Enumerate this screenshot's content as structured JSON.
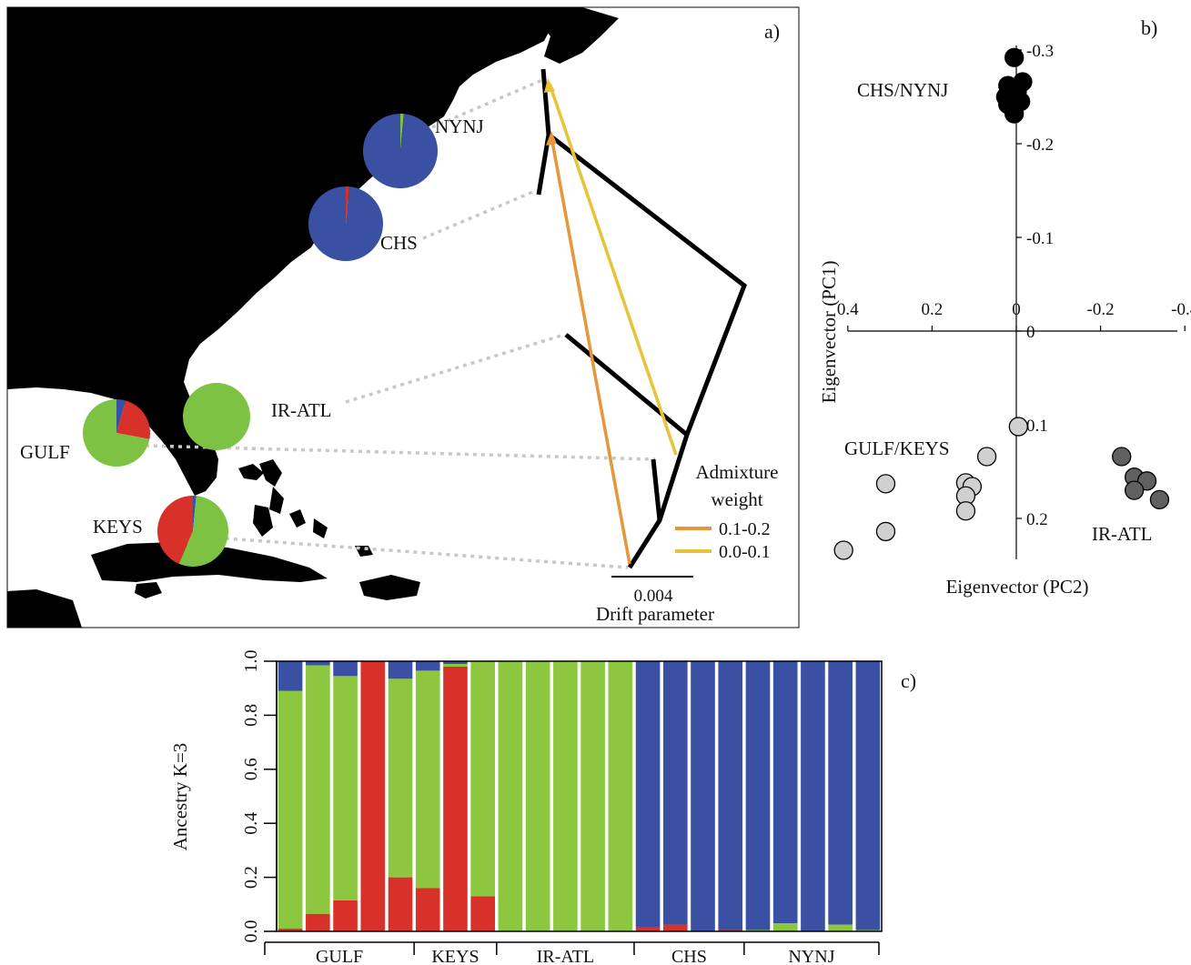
{
  "panel_labels": {
    "a": "a)",
    "b": "b)",
    "c": "c)"
  },
  "map": {
    "populations": [
      {
        "name": "NYNJ",
        "pie": {
          "blue": 0.985,
          "green": 0.015,
          "red": 0.0
        }
      },
      {
        "name": "CHS",
        "pie": {
          "blue": 0.985,
          "green": 0.0,
          "red": 0.015
        }
      },
      {
        "name": "IR-ATL",
        "pie": {
          "blue": 0.0,
          "green": 1.0,
          "red": 0.0
        }
      },
      {
        "name": "GULF",
        "pie": {
          "blue": 0.045,
          "green": 0.72,
          "red": 0.235
        }
      },
      {
        "name": "KEYS",
        "pie": {
          "blue": 0.015,
          "green": 0.55,
          "red": 0.435
        }
      }
    ],
    "legend": {
      "title_line1": "Admixture",
      "title_line2": "weight",
      "items": [
        {
          "label": "0.1-0.2",
          "color": "#E8963A"
        },
        {
          "label": "0.0-0.1",
          "color": "#E8C33A"
        }
      ]
    },
    "scale_value": "0.004",
    "scale_label": "Drift parameter"
  },
  "colors": {
    "blue": "#3A50A3",
    "green": "#8DC73F",
    "red": "#D7312A",
    "pie_green": "#7DC242",
    "land": "#000000"
  },
  "chart_data": [
    {
      "type": "scatter",
      "title": "",
      "xlabel": "Eigenvector (PC2)",
      "ylabel": "Eigenvector (PC1)",
      "xlim": [
        0.4,
        -0.4
      ],
      "ylim": [
        -0.3,
        0.2
      ],
      "x_ticks": [
        "0.4",
        "0.2",
        "0",
        "-0.2",
        "-0.4"
      ],
      "y_ticks": [
        "-0.3",
        "-0.2",
        "-0.1",
        "0",
        "0.1",
        "0.2"
      ],
      "series": [
        {
          "name": "CHS/NYNJ",
          "color": "#000000",
          "points": [
            [
              0.005,
              -0.292
            ],
            [
              -0.015,
              -0.266
            ],
            [
              0.02,
              -0.262
            ],
            [
              -0.002,
              -0.256
            ],
            [
              0.025,
              -0.25
            ],
            [
              0.0,
              -0.245
            ],
            [
              -0.01,
              -0.245
            ],
            [
              0.02,
              -0.242
            ],
            [
              0.005,
              -0.232
            ]
          ]
        },
        {
          "name": "GULF/KEYS",
          "color": "#D0D0D0",
          "points": [
            [
              -0.005,
              0.102
            ],
            [
              0.07,
              0.134
            ],
            [
              0.31,
              0.163
            ],
            [
              0.12,
              0.162
            ],
            [
              0.105,
              0.166
            ],
            [
              0.12,
              0.176
            ],
            [
              0.12,
              0.192
            ],
            [
              0.31,
              0.214
            ],
            [
              0.41,
              0.234
            ]
          ]
        },
        {
          "name": "IR-ATL",
          "color": "#606060",
          "points": [
            [
              -0.25,
              0.134
            ],
            [
              -0.28,
              0.156
            ],
            [
              -0.31,
              0.16
            ],
            [
              -0.28,
              0.17
            ],
            [
              -0.34,
              0.18
            ]
          ]
        }
      ]
    },
    {
      "type": "bar",
      "title": "",
      "ylabel": "Ancestry K=3",
      "ylim": [
        0,
        1
      ],
      "y_ticks": [
        "0.0",
        "0.2",
        "0.4",
        "0.6",
        "0.8",
        "1.0"
      ],
      "stacked": true,
      "groups": [
        {
          "label": "GULF",
          "count": 5
        },
        {
          "label": "KEYS",
          "count": 3
        },
        {
          "label": "IR-ATL",
          "count": 5
        },
        {
          "label": "CHS",
          "count": 4
        },
        {
          "label": "NYNJ",
          "count": 5
        }
      ],
      "series": [
        {
          "name": "red",
          "values": [
            0.01,
            0.065,
            0.115,
            1.0,
            0.2,
            0.16,
            0.98,
            0.13,
            0,
            0,
            0,
            0,
            0,
            0.015,
            0.025,
            0,
            0.005,
            0,
            0,
            0,
            0,
            0
          ]
        },
        {
          "name": "green",
          "values": [
            0.88,
            0.92,
            0.83,
            0,
            0.735,
            0.805,
            0.01,
            0.87,
            1,
            1,
            1,
            1,
            1,
            0,
            0,
            0,
            0,
            0.005,
            0.03,
            0,
            0.025,
            0.005
          ]
        },
        {
          "name": "blue",
          "values": [
            0.11,
            0.015,
            0.055,
            0,
            0.065,
            0.035,
            0.01,
            0,
            0,
            0,
            0,
            0,
            0,
            0.985,
            0.975,
            1,
            0.995,
            0.995,
            0.97,
            1,
            0.975,
            0.995
          ]
        }
      ]
    }
  ]
}
